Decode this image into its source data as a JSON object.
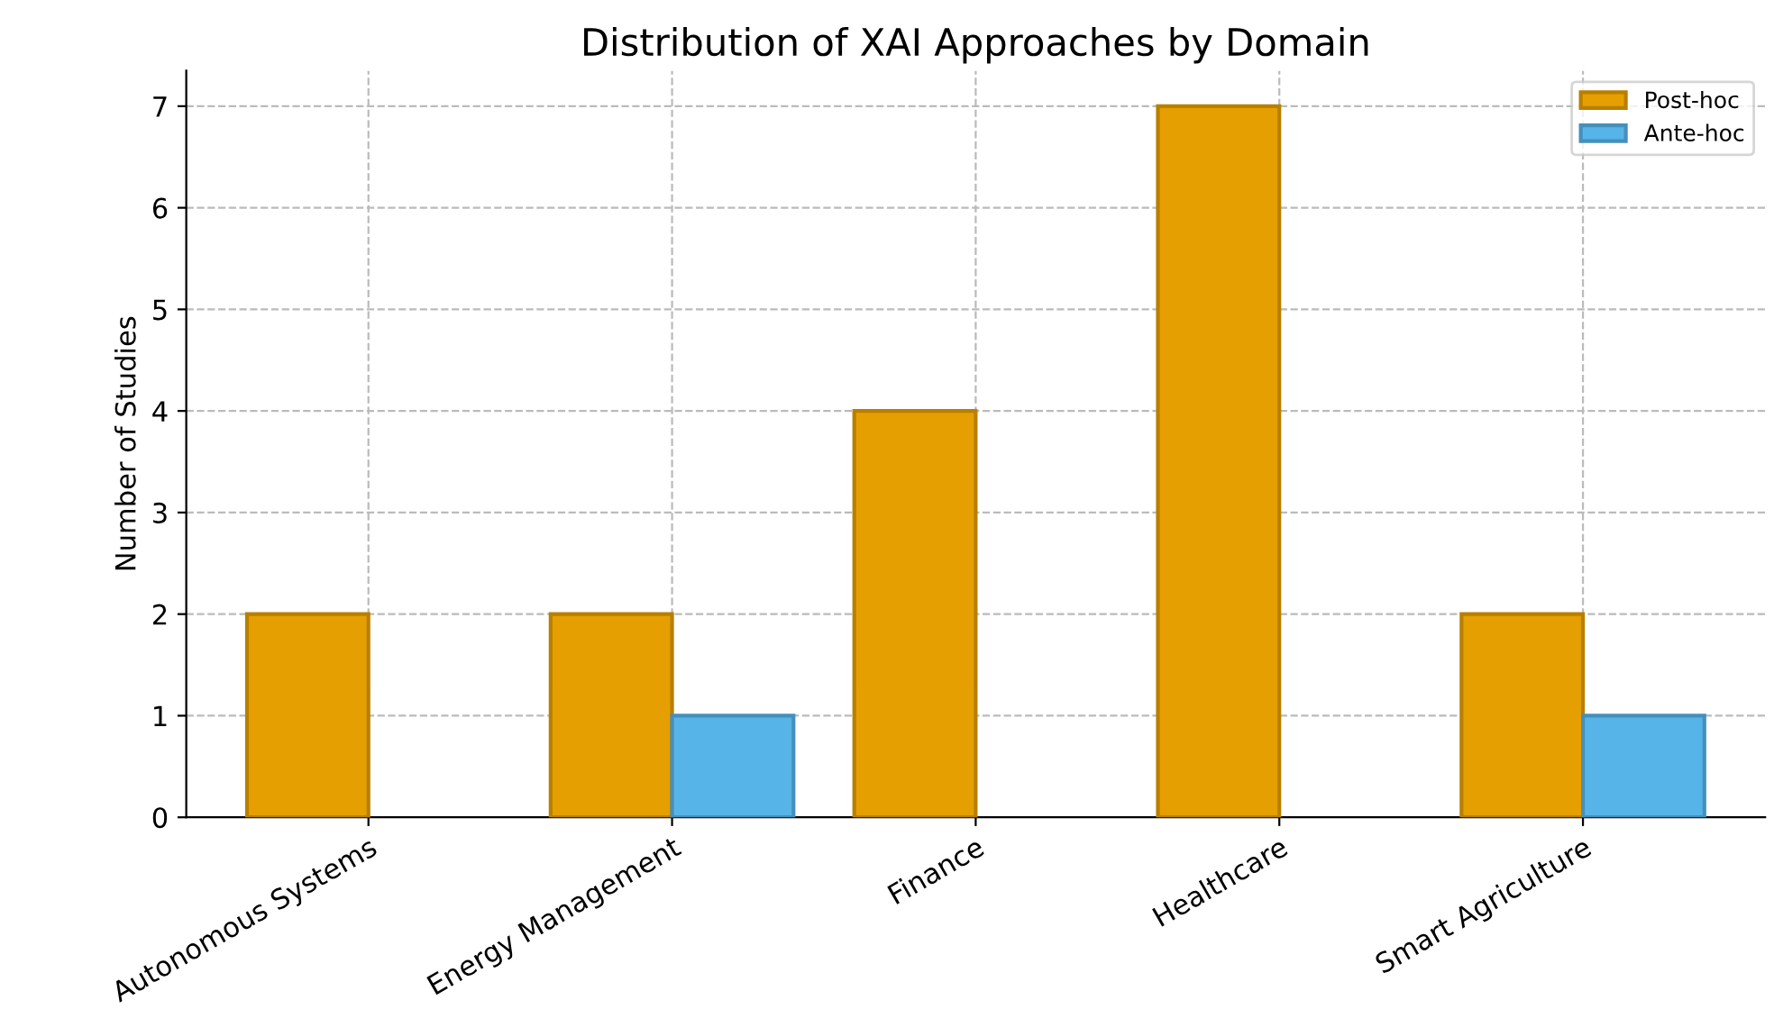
{
  "chart_data": {
    "type": "bar",
    "title": "Distribution of XAI Approaches by Domain",
    "ylabel": "Number of Studies",
    "categories": [
      "Autonomous Systems",
      "Energy Management",
      "Finance",
      "Healthcare",
      "Smart Agriculture"
    ],
    "series": [
      {
        "name": "Post-hoc",
        "color": "#e69f00",
        "values": [
          2,
          2,
          4,
          7,
          2
        ]
      },
      {
        "name": "Ante-hoc",
        "color": "#56b4e9",
        "values": [
          null,
          1,
          null,
          null,
          1
        ]
      }
    ],
    "ylim": [
      0,
      7.35
    ],
    "yticks": [
      0,
      1,
      2,
      3,
      4,
      5,
      6,
      7
    ],
    "grid": true,
    "legend": "top right"
  }
}
